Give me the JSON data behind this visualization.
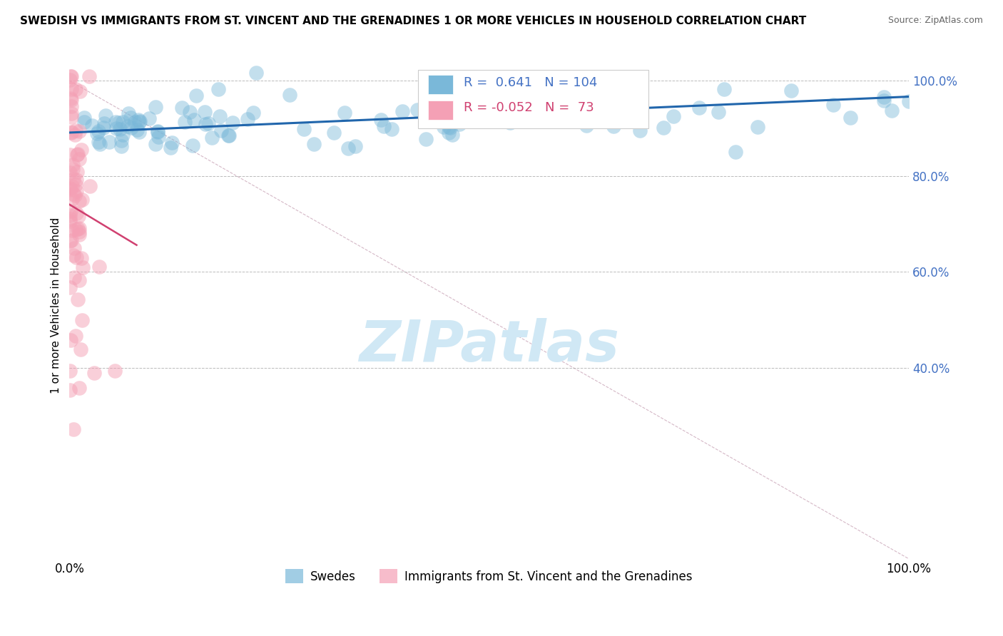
{
  "title": "SWEDISH VS IMMIGRANTS FROM ST. VINCENT AND THE GRENADINES 1 OR MORE VEHICLES IN HOUSEHOLD CORRELATION CHART",
  "source": "Source: ZipAtlas.com",
  "legend_blue_label": "Swedes",
  "legend_pink_label": "Immigrants from St. Vincent and the Grenadines",
  "R_blue": 0.641,
  "N_blue": 104,
  "R_pink": -0.052,
  "N_pink": 73,
  "blue_color": "#7ab8d9",
  "pink_color": "#f4a0b5",
  "trend_blue_color": "#2166ac",
  "trend_pink_color": "#d04070",
  "diag_color": "#d0b0c0",
  "watermark_color": "#d0e8f5",
  "background_color": "#ffffff",
  "ylabel": "1 or more Vehicles in Household",
  "ytick_labels": [
    "40.0%",
    "60.0%",
    "80.0%",
    "100.0%"
  ],
  "ytick_vals": [
    0.4,
    0.6,
    0.8,
    1.0
  ],
  "xtick_labels": [
    "0.0%",
    "100.0%"
  ],
  "xtick_vals": [
    0.0,
    1.0
  ],
  "xlim": [
    0.0,
    1.0
  ],
  "ylim": [
    0.0,
    1.06
  ]
}
